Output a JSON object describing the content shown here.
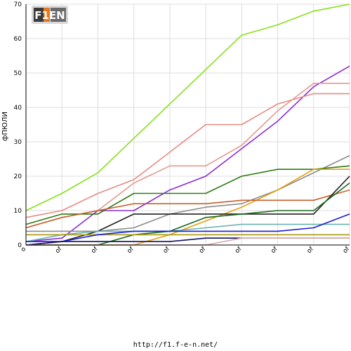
{
  "logo": {
    "text": "F1EN",
    "colors": {
      "dark": "#3a3a3a",
      "light": "#bdbdbd",
      "accent": "#e8791a"
    }
  },
  "footer": {
    "url": "http://f1.f-e-n.net/"
  },
  "chart_data": {
    "type": "line",
    "title": "",
    "xlabel": "",
    "ylabel": "фПЮЛИ",
    "ylim": [
      0,
      70
    ],
    "yticks": [
      0,
      10,
      20,
      30,
      40,
      50,
      60,
      70
    ],
    "categories": [
      "o",
      "of",
      "of",
      "of",
      "of",
      "of",
      "of",
      "of",
      "of",
      "of"
    ],
    "grid": true,
    "legend": "none",
    "series": [
      {
        "color": "#86e01a",
        "values": [
          10,
          15,
          21,
          31,
          41,
          51,
          61,
          64,
          68,
          70
        ]
      },
      {
        "color": "#8a2bd6",
        "values": [
          1,
          2,
          10,
          10,
          16,
          20,
          28,
          36,
          46,
          52
        ]
      },
      {
        "color": "#e88a82",
        "values": [
          8,
          10,
          15,
          19,
          27,
          35,
          35,
          41,
          44,
          44
        ]
      },
      {
        "color": "#e4988a",
        "values": [
          5,
          8,
          10,
          18,
          23,
          23,
          29,
          39,
          47,
          47
        ]
      },
      {
        "color": "#8c8c8c",
        "values": [
          4,
          4,
          4,
          5,
          9,
          11,
          12,
          16,
          21,
          26
        ]
      },
      {
        "color": "#2f7a10",
        "values": [
          6,
          9,
          9,
          15,
          15,
          15,
          20,
          22,
          22,
          23
        ]
      },
      {
        "color": "#e8a010",
        "values": [
          0,
          0,
          0,
          0,
          3,
          7,
          11,
          16,
          22,
          22
        ]
      },
      {
        "color": "#c6612c",
        "values": [
          5,
          8,
          10,
          12,
          12,
          12,
          13,
          13,
          13,
          16
        ]
      },
      {
        "color": "#222222",
        "values": [
          0,
          1,
          4,
          9,
          9,
          9,
          9,
          9,
          9,
          20
        ]
      },
      {
        "color": "#1a6a1a",
        "values": [
          0,
          0,
          0,
          3,
          4,
          8,
          9,
          10,
          10,
          18
        ]
      },
      {
        "color": "#6ab0b0",
        "values": [
          1,
          3,
          4,
          4,
          4,
          5,
          6,
          6,
          6,
          6
        ]
      },
      {
        "color": "#5a5a5a",
        "values": [
          3,
          3,
          3,
          3,
          3,
          3,
          3,
          3,
          3,
          3
        ]
      },
      {
        "color": "#b0a020",
        "values": [
          3,
          3,
          3,
          3,
          3,
          3,
          3,
          3,
          3,
          3
        ]
      },
      {
        "color": "#1a1ad6",
        "values": [
          1,
          1,
          3,
          4,
          4,
          4,
          4,
          4,
          5,
          9
        ]
      },
      {
        "color": "#101060",
        "values": [
          0,
          1,
          1,
          1,
          1,
          2,
          2,
          2,
          2,
          2
        ]
      },
      {
        "color": "#d8a8a8",
        "values": [
          0,
          0,
          0,
          0,
          0,
          0,
          2,
          2,
          2,
          2
        ]
      }
    ]
  }
}
